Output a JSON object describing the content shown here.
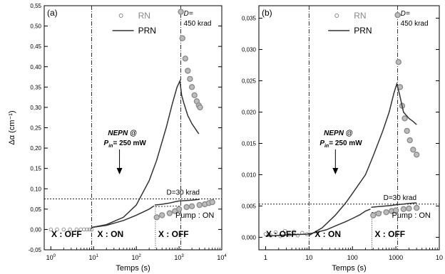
{
  "chart_data": [
    {
      "type": "scatter",
      "panel_label": "(a)",
      "xlabel": "Temps (s)",
      "ylabel": "Δα (cm⁻¹)",
      "xscale": "log",
      "xlim": [
        0.7,
        10000
      ],
      "ylim": [
        -0.05,
        0.55
      ],
      "yticks": [
        "-0,05",
        "0,00",
        "0,05",
        "0,10",
        "0,15",
        "0,20",
        "0,25",
        "0,30",
        "0,35",
        "0,40",
        "0,45",
        "0,50",
        "0,55"
      ],
      "xticks": [
        {
          "base": "10",
          "exp": "0"
        },
        {
          "base": "10",
          "exp": "1"
        },
        {
          "base": "10",
          "exp": "2"
        },
        {
          "base": "10",
          "exp": "3"
        },
        {
          "base": "10",
          "exp": "4"
        }
      ],
      "legend": {
        "position": "top-center",
        "entries": [
          "RN",
          "PRN"
        ]
      },
      "threshold_y": 0.075,
      "vlines_x": [
        9,
        1100
      ],
      "annotations": {
        "d_high": "D=",
        "d_high_value": "450 krad",
        "d_low": "D=30 krad",
        "nepn": "NEPN @",
        "pin_sym": "P",
        "pin_sub": "in",
        "pin_val": "= 250 mW",
        "pump_on": "Pump : ON",
        "x_off_1": "X : OFF",
        "x_on": "X : ON",
        "x_off_2": "X : OFF"
      },
      "series": [
        {
          "name": "RN",
          "style": "open-circles",
          "color": "#888888",
          "x": [
            1,
            1.4,
            2,
            2.8,
            4,
            5,
            6,
            7,
            8,
            9
          ],
          "y": [
            0,
            0,
            0,
            0,
            0,
            0,
            0,
            0,
            0,
            0
          ]
        },
        {
          "name": "RN",
          "style": "thick-circles",
          "color": "#8c8c8c",
          "x": [
            300,
            400,
            600,
            800,
            1000,
            1500,
            2000,
            3000,
            4000,
            5000,
            6000
          ],
          "y": [
            0.03,
            0.035,
            0.04,
            0.045,
            0.05,
            0.055,
            0.057,
            0.06,
            0.062,
            0.065,
            0.067
          ]
        },
        {
          "name": "RN",
          "style": "thick-circles",
          "color": "#8c8c8c",
          "x": [
            1100,
            1200,
            1400,
            1600,
            1800,
            2000,
            2300,
            2600,
            2900,
            3100
          ],
          "y": [
            0.535,
            0.47,
            0.42,
            0.39,
            0.37,
            0.35,
            0.33,
            0.315,
            0.305,
            0.3
          ]
        },
        {
          "name": "PRN",
          "style": "line",
          "color": "#333333",
          "x": [
            9,
            20,
            50,
            100,
            200,
            300,
            500,
            700,
            900,
            1050,
            1150,
            1300,
            1600,
            2000,
            2500,
            2900
          ],
          "y": [
            0.005,
            0.012,
            0.03,
            0.06,
            0.12,
            0.17,
            0.25,
            0.31,
            0.35,
            0.365,
            0.33,
            0.31,
            0.28,
            0.26,
            0.245,
            0.235
          ]
        },
        {
          "name": "PRN",
          "style": "line",
          "color": "#333333",
          "x": [
            9,
            20,
            50,
            100,
            200,
            260
          ],
          "y": [
            0.005,
            0.01,
            0.022,
            0.035,
            0.05,
            0.058
          ]
        },
        {
          "name": "PRN",
          "style": "line",
          "color": "#333333",
          "x": [
            270,
            400,
            600,
            800,
            1000,
            2000,
            3000
          ],
          "y": [
            0.06,
            0.062,
            0.065,
            0.068,
            0.07,
            0.072,
            0.074
          ]
        }
      ]
    },
    {
      "type": "scatter",
      "panel_label": "(b)",
      "xlabel": "Temps (s)",
      "ylabel": "",
      "xscale": "log",
      "xlim": [
        0.7,
        10000
      ],
      "ylim": [
        -0.002,
        0.037
      ],
      "yticks": [
        "0,000",
        "0,005",
        "0,010",
        "0,015",
        "0,020",
        "0,025",
        "0,030",
        "0,035"
      ],
      "xticks": [
        {
          "base": "1",
          "exp": ""
        },
        {
          "base": "10",
          "exp": ""
        },
        {
          "base": "100",
          "exp": ""
        },
        {
          "base": "1000",
          "exp": ""
        },
        {
          "base": "10",
          "exp": ""
        }
      ],
      "legend": {
        "position": "top-center",
        "entries": [
          "RN",
          "PRN"
        ]
      },
      "threshold_y": 0.0053,
      "vlines_x": [
        10,
        1100
      ],
      "annotations": {
        "d_high": "D=",
        "d_high_value": "450 krad",
        "d_low": "D=30 krad",
        "nepn": "NEPN @",
        "pin_sym": "P",
        "pin_sub": "in",
        "pin_val": "= 250 mW",
        "pump_on": "Pump : ON",
        "x_off_1": "X : OFF",
        "x_on": "X : ON",
        "x_off_2": "X : OFF"
      },
      "series": [
        {
          "name": "RN",
          "style": "open-circles",
          "color": "#888888",
          "x": [
            1,
            1.3,
            1.7,
            2.2,
            2.8,
            3.5,
            4.5,
            5.5,
            7,
            9
          ],
          "y": [
            0.0005,
            0.0003,
            0.0008,
            0.0002,
            0.001,
            0.0004,
            0.0009,
            0.0003,
            0.0007,
            0.0005
          ]
        },
        {
          "name": "RN",
          "style": "thick-circles",
          "color": "#8c8c8c",
          "x": [
            300,
            400,
            600,
            800,
            1000,
            1500,
            2000,
            3000
          ],
          "y": [
            0.0035,
            0.0038,
            0.004,
            0.0042,
            0.0043,
            0.0045,
            0.0046,
            0.0047
          ]
        },
        {
          "name": "RN",
          "style": "thick-circles",
          "color": "#8c8c8c",
          "x": [
            1100,
            1150,
            1250,
            1400,
            1600,
            1800,
            2100,
            2500,
            3000
          ],
          "y": [
            0.0355,
            0.028,
            0.024,
            0.021,
            0.019,
            0.017,
            0.0155,
            0.014,
            0.0132
          ]
        },
        {
          "name": "PRN",
          "style": "line",
          "color": "#333333",
          "x": [
            10,
            20,
            40,
            70,
            100,
            200,
            300,
            500,
            700,
            900,
            1050,
            1200,
            1500,
            2000,
            2500,
            3000
          ],
          "y": [
            0.0003,
            0.0015,
            0.0035,
            0.0055,
            0.007,
            0.01,
            0.013,
            0.017,
            0.02,
            0.023,
            0.0245,
            0.023,
            0.02,
            0.019,
            0.0185,
            0.018
          ]
        },
        {
          "name": "PRN",
          "style": "line",
          "color": "#333333",
          "x": [
            1,
            2,
            4,
            9,
            15,
            25,
            40,
            70,
            100,
            150,
            200,
            260
          ],
          "y": [
            0.0002,
            0.0003,
            0.0004,
            0.0005,
            0.0008,
            0.0012,
            0.0018,
            0.0025,
            0.003,
            0.0036,
            0.0042,
            0.0045
          ]
        },
        {
          "name": "PRN",
          "style": "line",
          "color": "#333333",
          "x": [
            270,
            400,
            600,
            800,
            1000,
            1500,
            2000,
            3000
          ],
          "y": [
            0.0048,
            0.0049,
            0.005,
            0.0051,
            0.0052,
            0.0053,
            0.0054,
            0.0055
          ]
        }
      ]
    }
  ]
}
